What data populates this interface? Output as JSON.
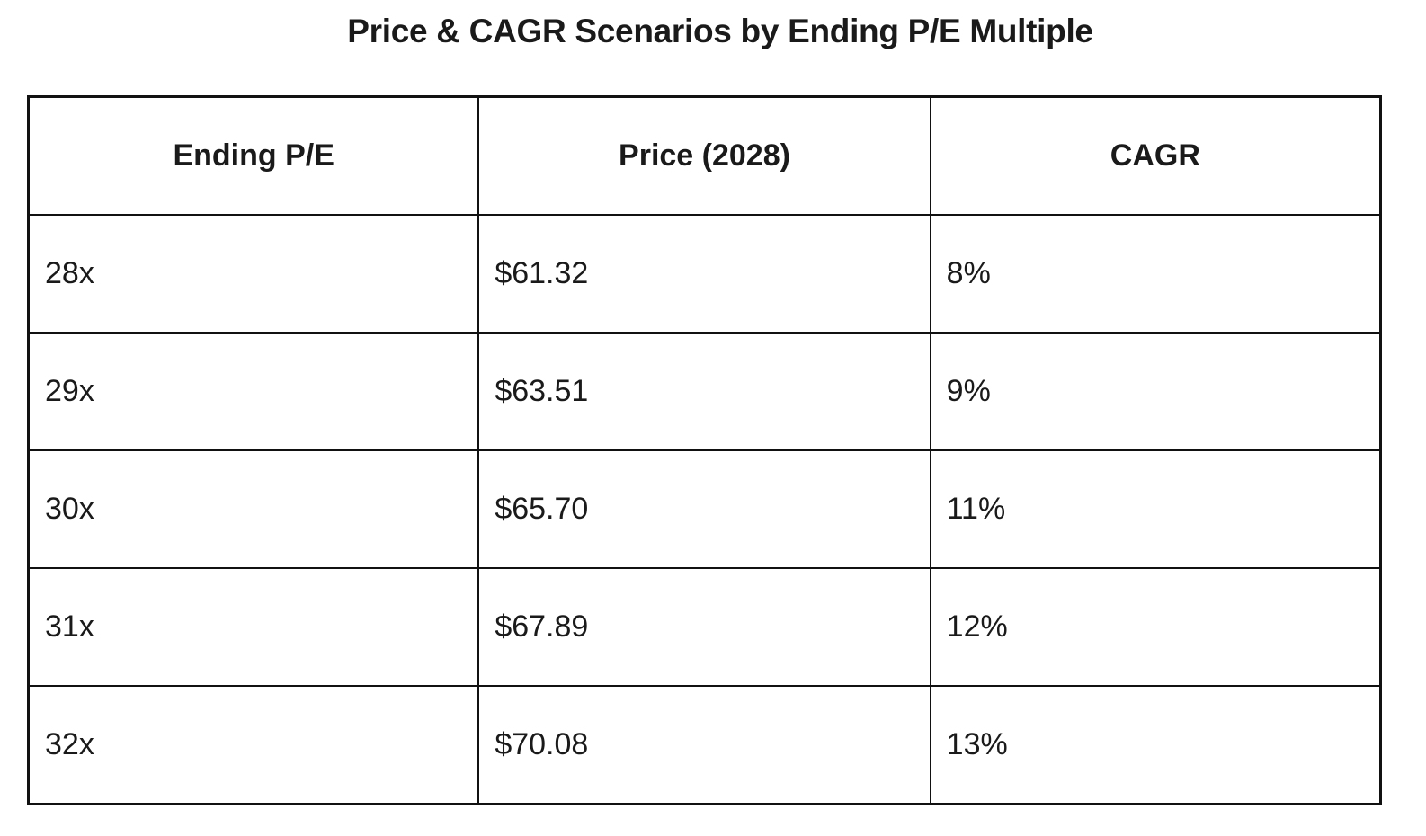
{
  "chart_data": {
    "type": "table",
    "title": "Price & CAGR Scenarios by Ending P/E Multiple",
    "columns": [
      "Ending P/E",
      "Price (2028)",
      "CAGR"
    ],
    "rows": [
      [
        "28x",
        "$61.32",
        "8%"
      ],
      [
        "29x",
        "$63.51",
        "9%"
      ],
      [
        "30x",
        "$65.70",
        "11%"
      ],
      [
        "31x",
        "$67.89",
        "12%"
      ],
      [
        "32x",
        "$70.08",
        "13%"
      ]
    ]
  }
}
